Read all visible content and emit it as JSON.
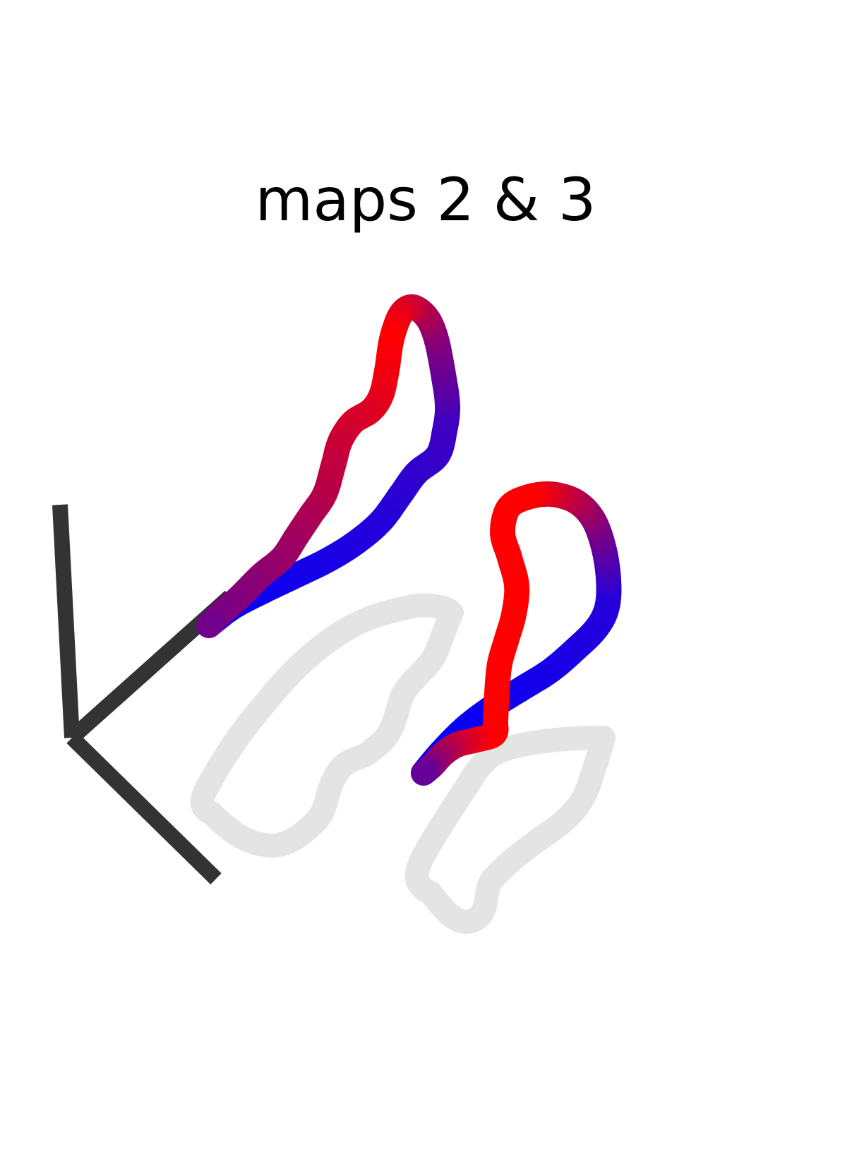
{
  "figure": {
    "title": "maps 2 & 3"
  },
  "colors": {
    "start": "#0000ff",
    "end": "#ff0000",
    "shadow": "#e4e4e4",
    "axes": "#333333"
  }
}
